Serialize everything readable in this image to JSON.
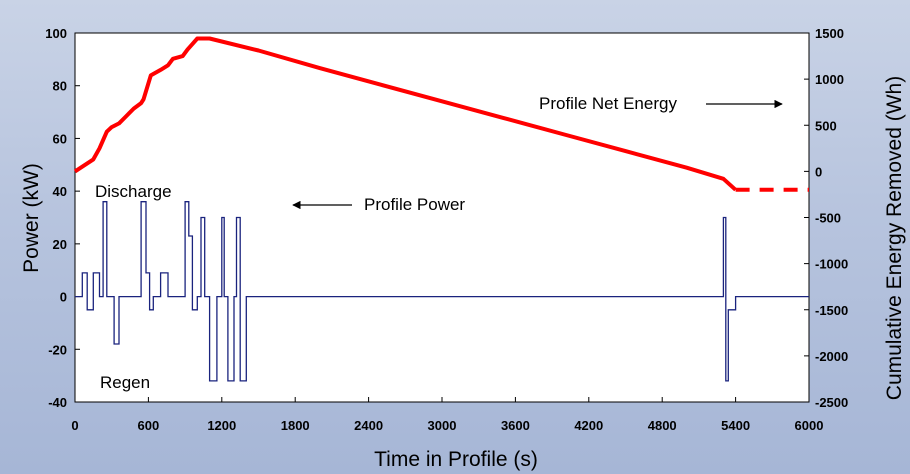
{
  "chart_data": {
    "type": "line",
    "xlabel": "Time in Profile (s)",
    "ylabel": "Power (kW)",
    "y2label": "Cumulative Energy Removed (Wh)",
    "xlim": [
      0,
      6000
    ],
    "ylim": [
      -40,
      100
    ],
    "y2lim": [
      -2500,
      1500
    ],
    "x_ticks": [
      "0",
      "600",
      "1200",
      "1800",
      "2400",
      "3000",
      "3600",
      "4200",
      "4800",
      "5400",
      "6000"
    ],
    "y_ticks": [
      "100",
      "80",
      "60",
      "40",
      "20",
      "0",
      "-20",
      "-40"
    ],
    "y2_ticks": [
      "1500",
      "1000",
      "500",
      "0",
      "-500",
      "-1000",
      "-1500",
      "-2000",
      "-2500"
    ],
    "grid": false,
    "background": "#ffffff",
    "annotations": {
      "discharge": "Discharge",
      "regen": "Regen",
      "profile_power": "Profile Power",
      "profile_net_energy": "Profile Net Energy"
    },
    "series": [
      {
        "axis": "left",
        "color": "#1a237e",
        "description": "power pulses",
        "x": [
          0,
          60,
          60,
          100,
          100,
          150,
          150,
          200,
          200,
          230,
          230,
          260,
          260,
          320,
          320,
          360,
          360,
          540,
          540,
          580,
          580,
          610,
          610,
          640,
          640,
          700,
          700,
          760,
          760,
          900,
          900,
          930,
          930,
          960,
          960,
          1000,
          1000,
          1030,
          1030,
          1060,
          1060,
          1100,
          1100,
          1160,
          1160,
          1200,
          1200,
          1220,
          1220,
          1250,
          1250,
          1300,
          1300,
          1320,
          1320,
          1350,
          1350,
          1400,
          1400,
          5300,
          5300,
          5320,
          5320,
          5340,
          5340,
          5400,
          5400,
          6000
        ],
        "y": [
          0,
          0,
          9,
          9,
          -5,
          -5,
          9,
          9,
          0,
          0,
          36,
          36,
          0,
          0,
          -18,
          -18,
          0,
          0,
          36,
          36,
          9,
          9,
          -5,
          -5,
          0,
          0,
          9,
          9,
          0,
          0,
          36,
          36,
          23,
          23,
          -5,
          -5,
          0,
          0,
          30,
          30,
          0,
          0,
          -32,
          -32,
          0,
          0,
          30,
          30,
          0,
          0,
          -32,
          -32,
          0,
          0,
          30,
          30,
          -32,
          -32,
          0,
          0,
          30,
          30,
          -32,
          -32,
          -5,
          -5,
          0,
          0
        ]
      },
      {
        "axis": "right",
        "color": "#ff0000",
        "description": "cumulative energy",
        "x": [
          0,
          150,
          200,
          260,
          300,
          360,
          420,
          480,
          540,
          560,
          620,
          700,
          760,
          800,
          880,
          920,
          960,
          1000,
          1100,
          1500,
          2000,
          2500,
          3000,
          3500,
          4000,
          4500,
          5000,
          5300,
          5400,
          6000
        ],
        "y": [
          0,
          130,
          250,
          430,
          480,
          520,
          600,
          680,
          740,
          780,
          1040,
          1100,
          1150,
          1220,
          1250,
          1320,
          1380,
          1440,
          1440,
          1310,
          1120,
          940,
          760,
          580,
          400,
          220,
          40,
          -80,
          -200,
          -200
        ]
      }
    ]
  }
}
